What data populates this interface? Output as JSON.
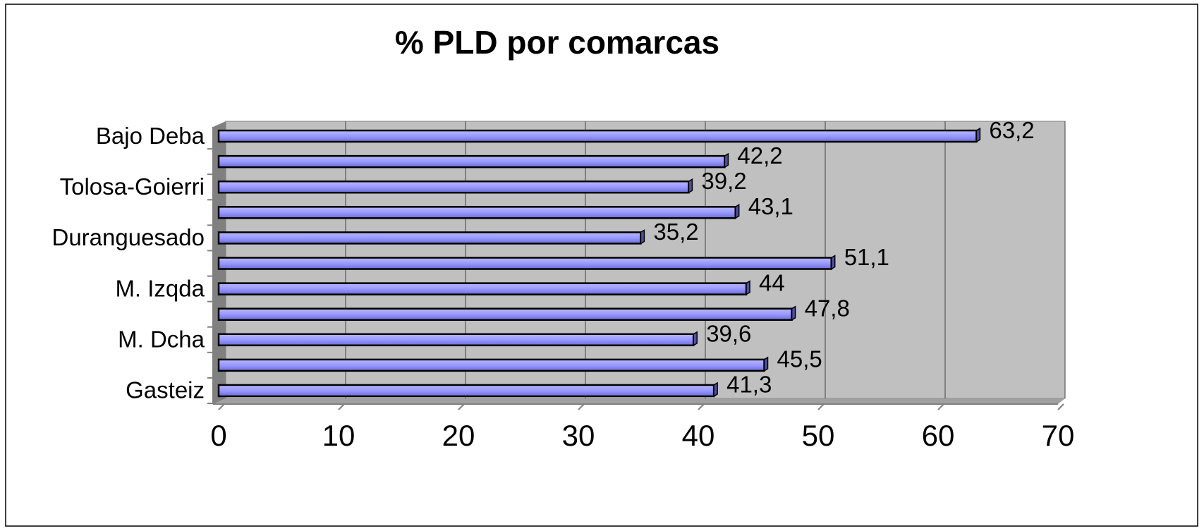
{
  "chart_data": {
    "type": "bar",
    "orientation": "horizontal",
    "title": "% PLD por comarcas",
    "categories": [
      "Gasteiz",
      null,
      "M. Dcha",
      null,
      "M. Izqda",
      null,
      "Duranguesado",
      null,
      "Tolosa-Goierri",
      null,
      "Bajo Deba"
    ],
    "values": [
      41.3,
      45.5,
      39.6,
      47.8,
      44,
      51.1,
      35.2,
      43.1,
      39.2,
      42.2,
      63.2
    ],
    "value_labels": [
      "41,3",
      "45,5",
      "39,6",
      "47,8",
      "44",
      "51,1",
      "35,2",
      "43,1",
      "39,2",
      "42,2",
      "63,2"
    ],
    "color": "#9999ff",
    "xlim": [
      0,
      70
    ],
    "xticks": [
      0,
      10,
      20,
      30,
      40,
      50,
      60,
      70
    ],
    "grid": true
  }
}
